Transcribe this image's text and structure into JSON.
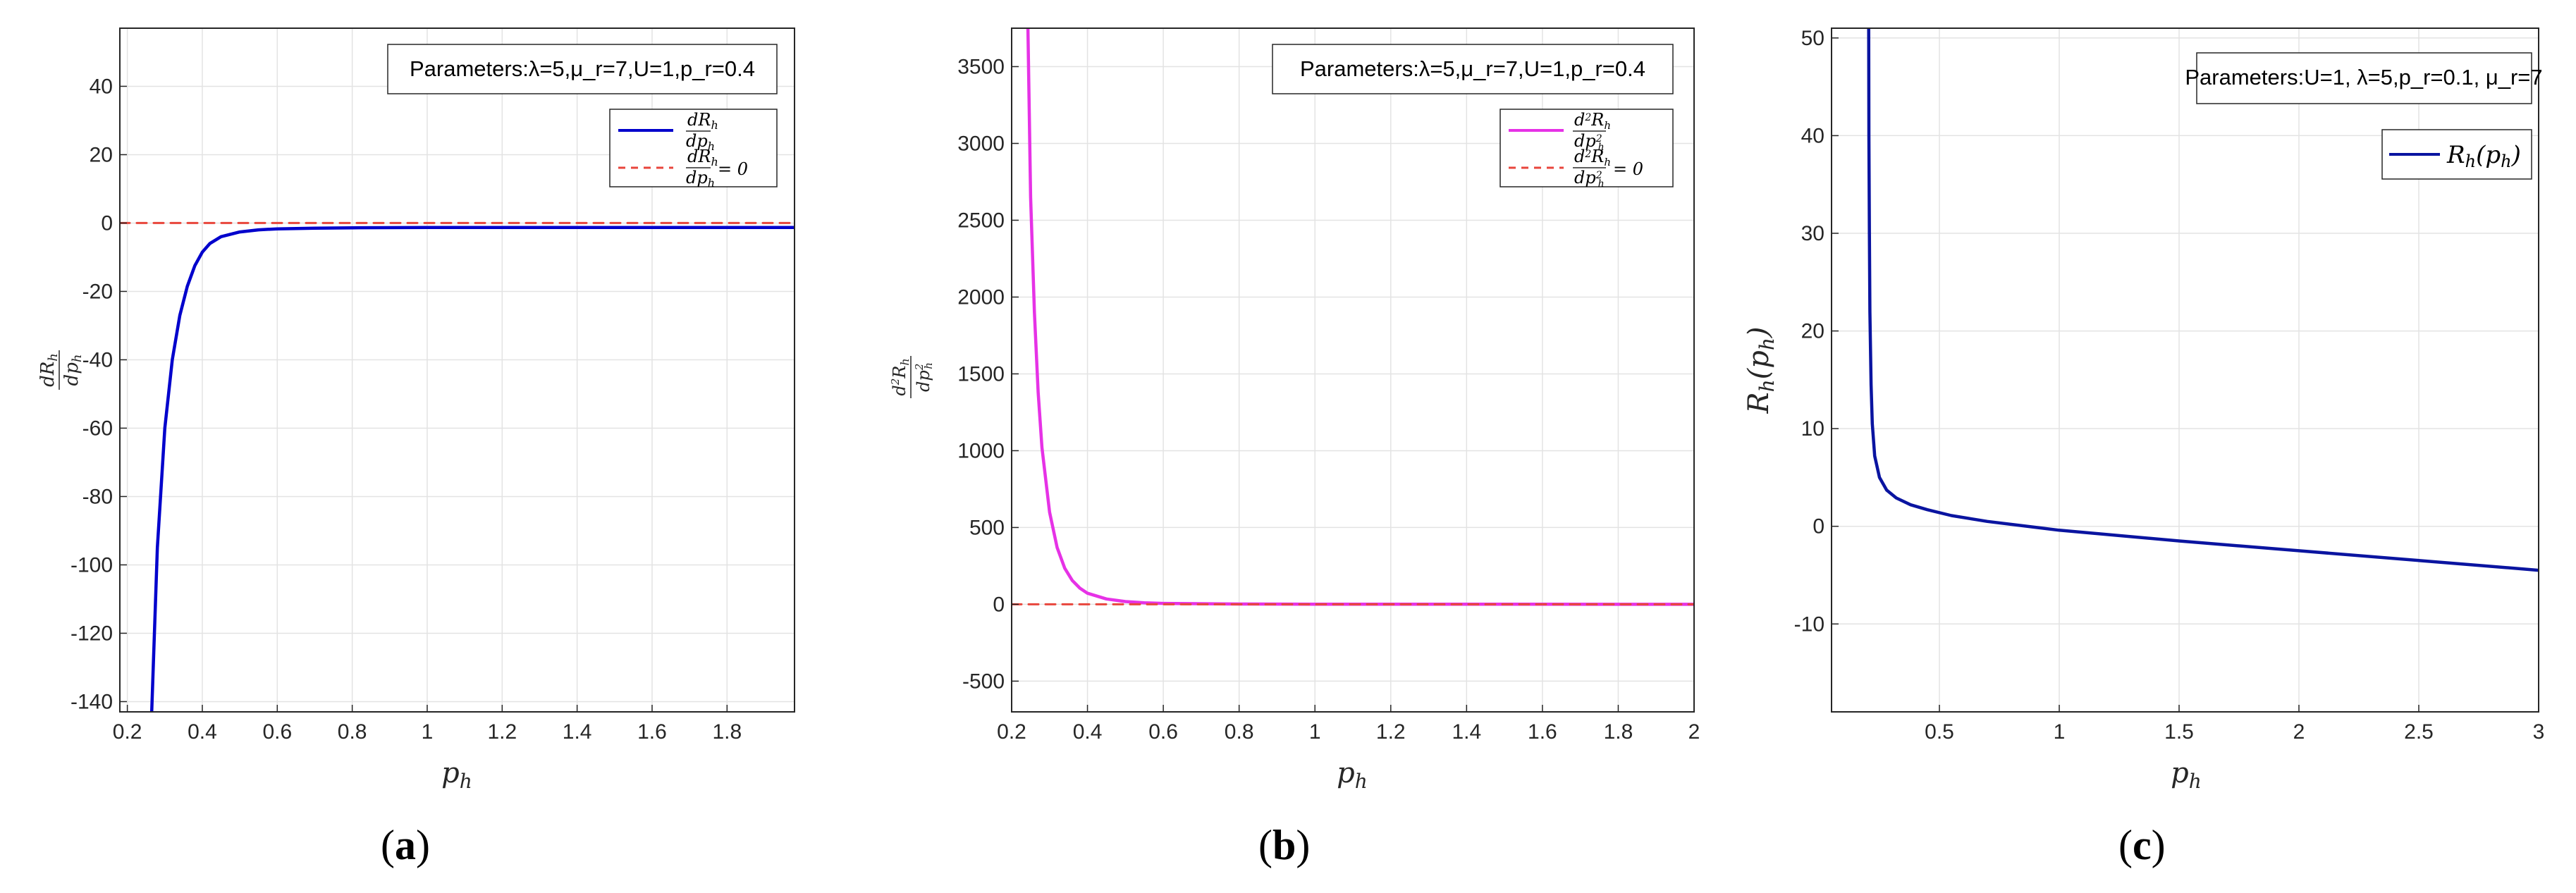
{
  "chart_data": [
    {
      "type": "line",
      "panel_label": "a",
      "params_text": "Parameters:λ=5,μ_r=7,U=1,p_r=0.4",
      "xlabel": "p_h",
      "ylabel": "dR_h/dp_h",
      "xlim": [
        0.18,
        1.98
      ],
      "ylim": [
        -143,
        57
      ],
      "xticks": [
        0.2,
        0.4,
        0.6,
        0.8,
        1,
        1.2,
        1.4,
        1.6,
        1.8
      ],
      "xtick_labels": [
        "0.2",
        "0.4",
        "0.6",
        "0.8",
        "1",
        "1.2",
        "1.4",
        "1.6",
        "1.8"
      ],
      "yticks": [
        -140,
        -120,
        -100,
        -80,
        -60,
        -40,
        -20,
        0,
        20,
        40
      ],
      "ytick_labels": [
        "-140",
        "-120",
        "-100",
        "-80",
        "-60",
        "-40",
        "-20",
        "0",
        "20",
        "40"
      ],
      "grid": true,
      "legend_position": "top-right",
      "series": [
        {
          "name": "dR_h/dp_h",
          "color": "#0000cc",
          "style": "solid",
          "x": [
            0.265,
            0.28,
            0.3,
            0.32,
            0.34,
            0.36,
            0.38,
            0.4,
            0.42,
            0.45,
            0.5,
            0.55,
            0.6,
            0.7,
            0.8,
            1.0,
            1.2,
            1.5,
            1.8,
            1.98
          ],
          "y": [
            -143,
            -95,
            -60,
            -40,
            -27,
            -18.5,
            -12.5,
            -8.5,
            -6,
            -4,
            -2.6,
            -2,
            -1.7,
            -1.5,
            -1.4,
            -1.3,
            -1.3,
            -1.3,
            -1.3,
            -1.3
          ]
        },
        {
          "name": "dR_h/dp_h = 0",
          "color": "#e8463c",
          "style": "dashed",
          "x": [
            0.18,
            1.98
          ],
          "y": [
            0,
            0
          ]
        }
      ]
    },
    {
      "type": "line",
      "panel_label": "b",
      "params_text": "Parameters:λ=5,μ_r=7,U=1,p_r=0.4",
      "xlabel": "p_h",
      "ylabel": "d²R_h/dp_h²",
      "xlim": [
        0.2,
        2
      ],
      "ylim": [
        -700,
        3750
      ],
      "xticks": [
        0.2,
        0.4,
        0.6,
        0.8,
        1,
        1.2,
        1.4,
        1.6,
        1.8,
        2
      ],
      "xtick_labels": [
        "0.2",
        "0.4",
        "0.6",
        "0.8",
        "1",
        "1.2",
        "1.4",
        "1.6",
        "1.8",
        "2"
      ],
      "yticks": [
        -500,
        0,
        500,
        1000,
        1500,
        2000,
        2500,
        3000,
        3500
      ],
      "ytick_labels": [
        "-500",
        "0",
        "500",
        "1000",
        "1500",
        "2000",
        "2500",
        "3000",
        "3500"
      ],
      "grid": true,
      "legend_position": "top-right",
      "series": [
        {
          "name": "d²R_h/dp_h²",
          "color": "#e632e6",
          "style": "solid",
          "x": [
            0.243,
            0.25,
            0.26,
            0.27,
            0.28,
            0.3,
            0.32,
            0.34,
            0.36,
            0.38,
            0.4,
            0.45,
            0.5,
            0.55,
            0.6,
            0.8,
            1.0,
            1.5,
            2.0
          ],
          "y": [
            3750,
            2650,
            1900,
            1380,
            1020,
            600,
            370,
            235,
            155,
            105,
            72,
            35,
            18,
            10,
            6,
            2,
            1,
            0.5,
            0.3
          ]
        },
        {
          "name": "d²R_h/dp_h² = 0",
          "color": "#e8463c",
          "style": "dashed",
          "x": [
            0.2,
            2
          ],
          "y": [
            0,
            0
          ]
        }
      ]
    },
    {
      "type": "line",
      "panel_label": "c",
      "params_text": "Parameters:U=1, λ=5,p_r=0.1, μ_r=7",
      "xlabel": "p_h",
      "ylabel": "R_h(p_h)",
      "xlim": [
        0.05,
        3
      ],
      "ylim": [
        -19,
        51
      ],
      "xticks": [
        0.5,
        1,
        1.5,
        2,
        2.5,
        3
      ],
      "xtick_labels": [
        "0.5",
        "1",
        "1.5",
        "2",
        "2.5",
        "3"
      ],
      "yticks": [
        -10,
        0,
        10,
        20,
        30,
        40,
        50
      ],
      "ytick_labels": [
        "-10",
        "0",
        "10",
        "20",
        "30",
        "40",
        "50"
      ],
      "grid": true,
      "legend_position": "top-right",
      "series": [
        {
          "name": "R_h(p_h)",
          "color": "#0a14a0",
          "style": "solid",
          "x": [
            0.205,
            0.206,
            0.208,
            0.21,
            0.215,
            0.22,
            0.23,
            0.25,
            0.28,
            0.32,
            0.38,
            0.45,
            0.55,
            0.7,
            0.9,
            1.0,
            1.5,
            2.0,
            2.5,
            3.0
          ],
          "y": [
            51,
            40,
            30,
            22,
            14.5,
            10.5,
            7.2,
            5,
            3.7,
            2.9,
            2.2,
            1.7,
            1.1,
            0.5,
            -0.1,
            -0.4,
            -1.5,
            -2.5,
            -3.5,
            -4.5
          ]
        }
      ]
    }
  ]
}
